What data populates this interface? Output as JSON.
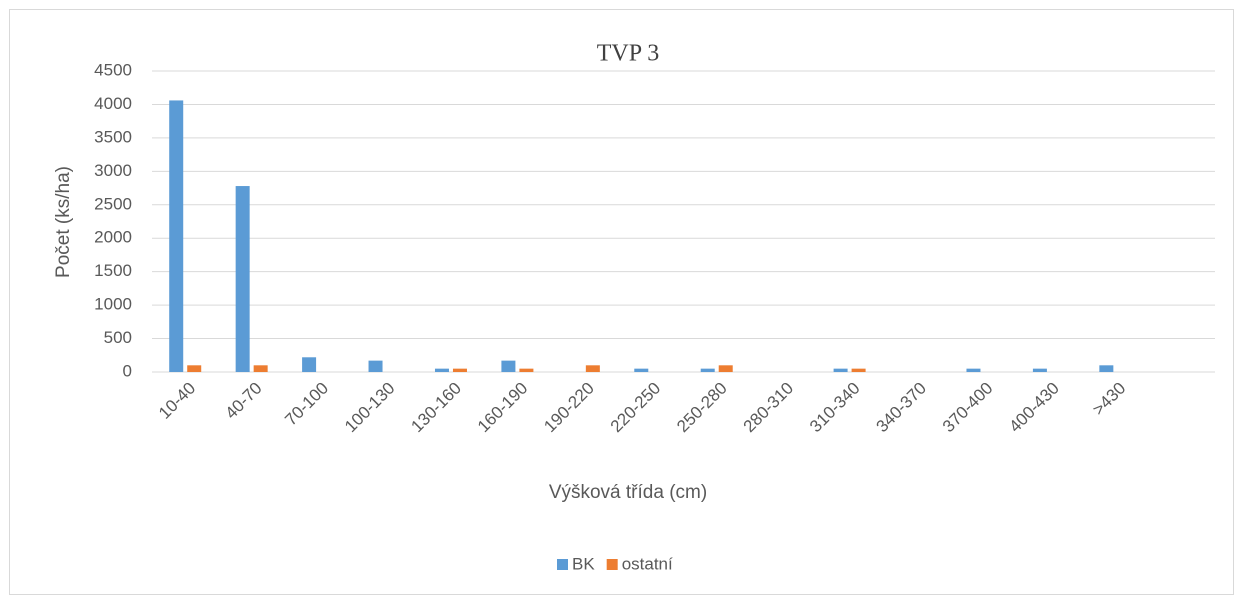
{
  "chart_data": {
    "type": "bar",
    "title": "TVP 3",
    "x_label": "Výšková třída (cm)",
    "y_label": "Počet (ks/ha)",
    "categories": [
      "10-40",
      "40-70",
      "70-100",
      "100-130",
      "130-160",
      "160-190",
      "190-220",
      "220-250",
      "250-280",
      "280-310",
      "310-340",
      "340-370",
      "370-400",
      "400-430",
      ">430",
      null
    ],
    "series": [
      {
        "name": "BK",
        "color": "#5b9bd5",
        "values": [
          4060,
          2780,
          220,
          170,
          50,
          170,
          0,
          50,
          50,
          0,
          50,
          0,
          50,
          50,
          100,
          0
        ]
      },
      {
        "name": "ostatní",
        "color": "#ed7d31",
        "values": [
          100,
          100,
          0,
          0,
          50,
          50,
          100,
          0,
          100,
          0,
          50,
          0,
          0,
          0,
          0,
          0
        ]
      }
    ],
    "ylim": [
      0,
      4500
    ],
    "yticks": [
      0,
      500,
      1000,
      1500,
      2000,
      2500,
      3000,
      3500,
      4000,
      4500
    ],
    "grid": true,
    "legend": "bottom"
  }
}
